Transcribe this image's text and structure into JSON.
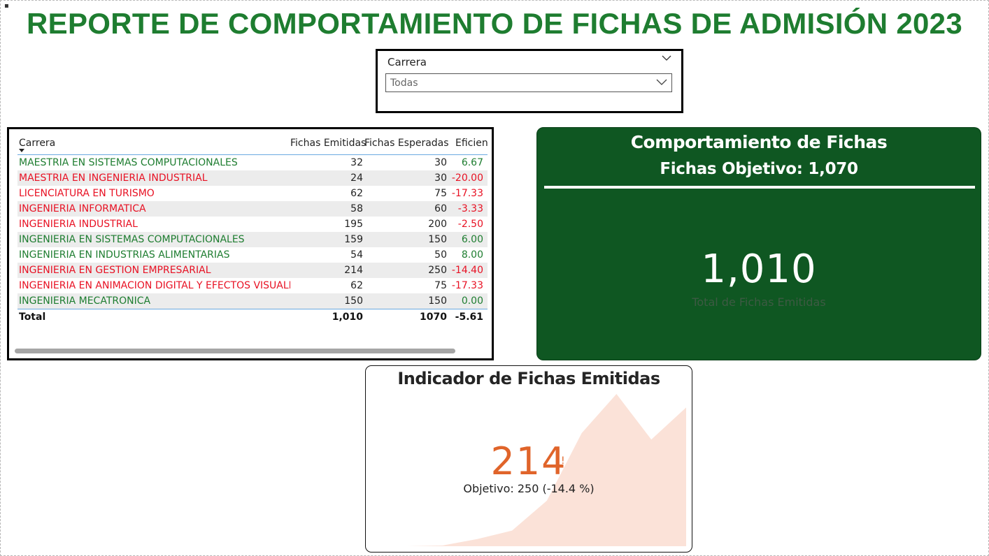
{
  "title": "REPORTE DE COMPORTAMIENTO DE FICHAS DE ADMISIÓN 2023",
  "slicer": {
    "header": "Carrera",
    "selected": "Todas"
  },
  "table": {
    "headers": [
      "Carrera",
      "Fichas Emitidas",
      "Fichas Esperadas",
      "Eficienc"
    ],
    "rows": [
      {
        "carrera": "MAESTRIA EN SISTEMAS COMPUTACIONALES",
        "emitidas": "32",
        "esperadas": "30",
        "eficiencia": "6.67",
        "status": "green"
      },
      {
        "carrera": "MAESTRIA EN INGENIERIA INDUSTRIAL",
        "emitidas": "24",
        "esperadas": "30",
        "eficiencia": "-20.00",
        "status": "red"
      },
      {
        "carrera": "LICENCIATURA EN TURISMO",
        "emitidas": "62",
        "esperadas": "75",
        "eficiencia": "-17.33",
        "status": "red"
      },
      {
        "carrera": "INGENIERIA INFORMATICA",
        "emitidas": "58",
        "esperadas": "60",
        "eficiencia": "-3.33",
        "status": "red"
      },
      {
        "carrera": "INGENIERIA INDUSTRIAL",
        "emitidas": "195",
        "esperadas": "200",
        "eficiencia": "-2.50",
        "status": "red"
      },
      {
        "carrera": "INGENIERIA EN SISTEMAS COMPUTACIONALES",
        "emitidas": "159",
        "esperadas": "150",
        "eficiencia": "6.00",
        "status": "green"
      },
      {
        "carrera": "INGENIERIA EN INDUSTRIAS ALIMENTARIAS",
        "emitidas": "54",
        "esperadas": "50",
        "eficiencia": "8.00",
        "status": "green"
      },
      {
        "carrera": "INGENIERIA EN GESTION EMPRESARIAL",
        "emitidas": "214",
        "esperadas": "250",
        "eficiencia": "-14.40",
        "status": "red"
      },
      {
        "carrera": "INGENIERIA EN ANIMACION DIGITAL Y EFECTOS VISUALES",
        "emitidas": "62",
        "esperadas": "75",
        "eficiencia": "-17.33",
        "status": "red"
      },
      {
        "carrera": "INGENIERIA MECATRONICA",
        "emitidas": "150",
        "esperadas": "150",
        "eficiencia": "0.00",
        "status": "green"
      }
    ],
    "total": {
      "label": "Total",
      "emitidas": "1,010",
      "esperadas": "1070",
      "eficiencia": "-5.61"
    }
  },
  "kpi": {
    "title": "Comportamiento de Fichas",
    "objective_label": "Fichas Objetivo:",
    "objective_value": "1,070",
    "value": "1,010",
    "label": "Total de Fichas Emitidas"
  },
  "indicator": {
    "title": "Indicador de Fichas Emitidas",
    "value": "214",
    "alert": "!",
    "goal_text": "Objetivo: 250 (-14.4 %)",
    "trend": [
      0,
      0,
      1,
      10,
      22,
      64,
      159,
      214,
      150,
      195
    ]
  },
  "colors": {
    "title_green": "#1e7d30",
    "positive": "#1e7d30",
    "negative": "#e81123",
    "card_green": "#0f5722",
    "indicator_orange": "#e0642a",
    "area_fill": "#fbe2d8"
  }
}
